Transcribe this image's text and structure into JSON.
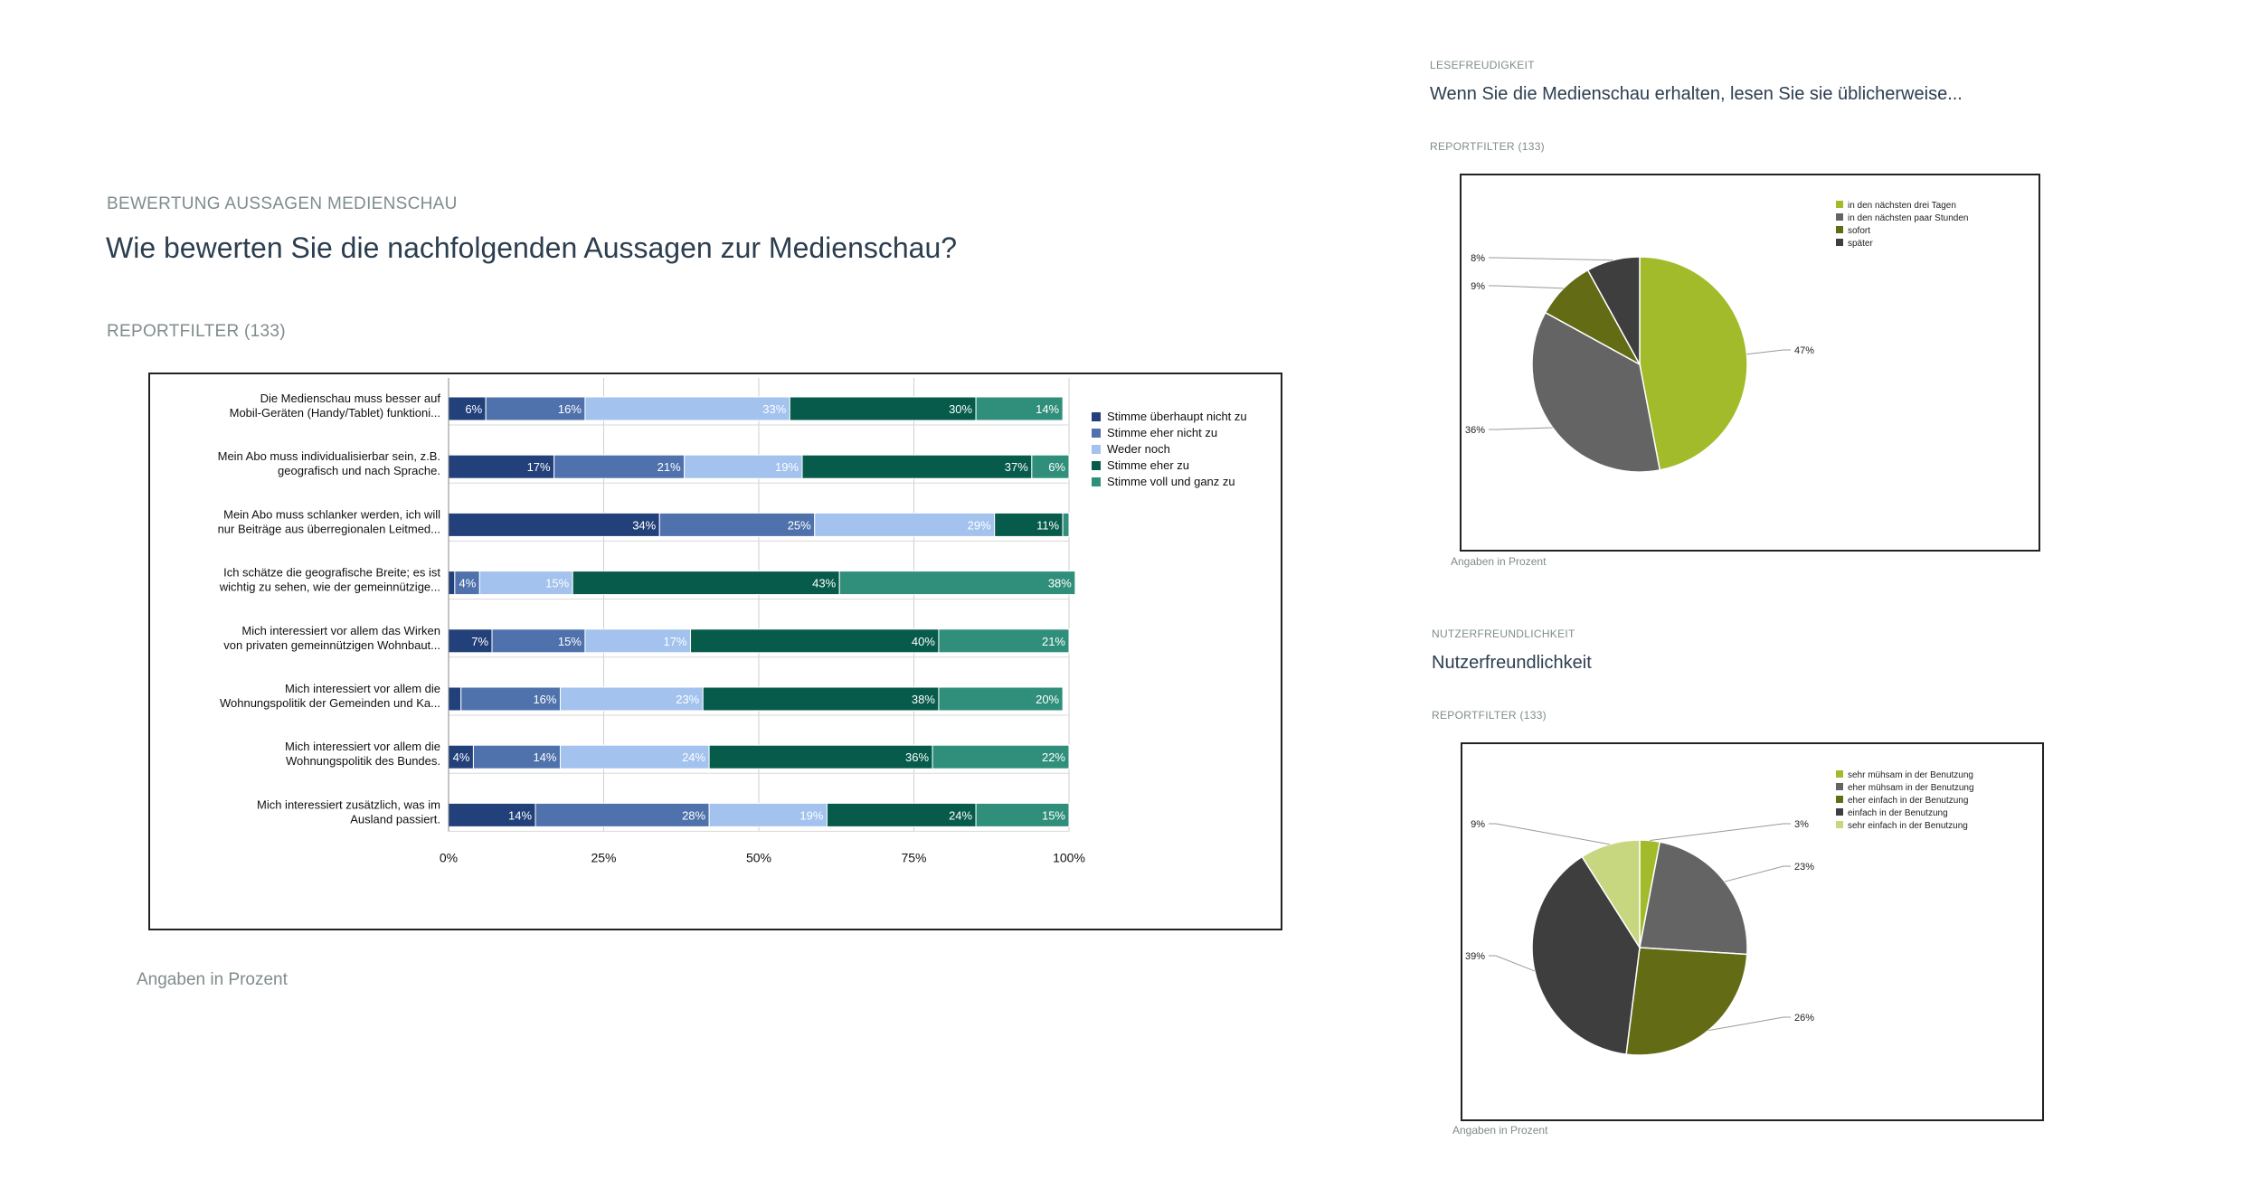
{
  "left": {
    "kicker": "BEWERTUNG AUSSAGEN MEDIENSCHAU",
    "question": "Wie bewerten Sie die nachfolgenden Aussagen zur Medienschau?",
    "filter": "REPORTFILTER (133)",
    "note": "Angaben in Prozent"
  },
  "right_top": {
    "kicker": "LESEFREUDIGKEIT",
    "question": "Wenn Sie die Medienschau erhalten, lesen Sie sie üblicherweise...",
    "filter": "REPORTFILTER (133)",
    "note": "Angaben in Prozent"
  },
  "right_bottom": {
    "kicker": "NUTZERFREUNDLICHKEIT",
    "question": "Nutzerfreundlichkeit",
    "filter": "REPORTFILTER (133)",
    "note": "Angaben in Prozent"
  },
  "chart_data": [
    {
      "type": "bar",
      "orientation": "horizontal",
      "stacked": true,
      "categories": [
        [
          "Die Medienschau muss besser auf",
          "Mobil-Geräten (Handy/Tablet) funktioni..."
        ],
        [
          "Mein Abo muss individualisierbar sein, z.B.",
          "geografisch und nach Sprache."
        ],
        [
          "Mein Abo muss schlanker werden, ich will",
          "nur Beiträge aus überregionalen Leitmed..."
        ],
        [
          "Ich schätze die geografische Breite; es ist",
          "wichtig zu sehen, wie der gemeinnützige..."
        ],
        [
          "Mich interessiert vor allem das Wirken",
          "von privaten gemeinnützigen Wohnbaut..."
        ],
        [
          "Mich interessiert vor allem die",
          "Wohnungspolitik der Gemeinden und Ka..."
        ],
        [
          "Mich interessiert vor allem die",
          "Wohnungspolitik des Bundes."
        ],
        [
          "Mich interessiert zusätzlich, was im",
          "Ausland passiert."
        ]
      ],
      "series": [
        {
          "name": "Stimme überhaupt nicht zu",
          "color": "#22407a",
          "values": [
            6,
            17,
            34,
            1,
            7,
            2,
            4,
            14
          ],
          "labels": [
            "6%",
            "17%",
            "34%",
            "",
            "7%",
            "",
            "4%",
            "14%"
          ]
        },
        {
          "name": "Stimme eher nicht zu",
          "color": "#4f72ad",
          "values": [
            16,
            21,
            25,
            4,
            15,
            16,
            14,
            28
          ],
          "labels": [
            "16%",
            "21%",
            "25%",
            "4%",
            "15%",
            "16%",
            "14%",
            "28%"
          ]
        },
        {
          "name": "Weder noch",
          "color": "#a3c2ee",
          "values": [
            33,
            19,
            29,
            15,
            17,
            23,
            24,
            19
          ],
          "labels": [
            "33%",
            "19%",
            "29%",
            "15%",
            "17%",
            "23%",
            "24%",
            "19%"
          ]
        },
        {
          "name": "Stimme eher zu",
          "color": "#075b4b",
          "values": [
            30,
            37,
            11,
            43,
            40,
            38,
            36,
            24
          ],
          "labels": [
            "30%",
            "37%",
            "11%",
            "43%",
            "40%",
            "38%",
            "36%",
            "24%"
          ]
        },
        {
          "name": "Stimme voll und ganz zu",
          "color": "#2f8f7a",
          "values": [
            14,
            6,
            1,
            38,
            21,
            20,
            22,
            15
          ],
          "labels": [
            "14%",
            "6%",
            "",
            "38%",
            "21%",
            "20%",
            "22%",
            "15%"
          ]
        }
      ],
      "xticks": [
        "0%",
        "25%",
        "50%",
        "75%",
        "100%"
      ],
      "xlim": [
        0,
        100
      ],
      "grid": true,
      "legend": "right"
    },
    {
      "type": "pie",
      "slices": [
        {
          "name": "in den nächsten drei Tagen",
          "value": 47,
          "label": "47%",
          "color": "#a2bb2b"
        },
        {
          "name": "in den nächsten paar Stunden",
          "value": 36,
          "label": "36%",
          "color": "#646464"
        },
        {
          "name": "sofort",
          "value": 9,
          "label": "9%",
          "color": "#636b15"
        },
        {
          "name": "später",
          "value": 8,
          "label": "8%",
          "color": "#3e3e3e"
        }
      ],
      "legend": "top-right"
    },
    {
      "type": "pie",
      "slices": [
        {
          "name": "sehr mühsam in der Benutzung",
          "value": 3,
          "label": "3%",
          "color": "#a2bb2b"
        },
        {
          "name": "eher mühsam in der Benutzung",
          "value": 23,
          "label": "23%",
          "color": "#646464"
        },
        {
          "name": "eher einfach in der Benutzung",
          "value": 26,
          "label": "26%",
          "color": "#636b15"
        },
        {
          "name": "einfach in der Benutzung",
          "value": 39,
          "label": "39%",
          "color": "#3e3e3e"
        },
        {
          "name": "sehr einfach in der Benutzung",
          "value": 9,
          "label": "9%",
          "color": "#c7d77f"
        }
      ],
      "legend": "top-right"
    }
  ]
}
